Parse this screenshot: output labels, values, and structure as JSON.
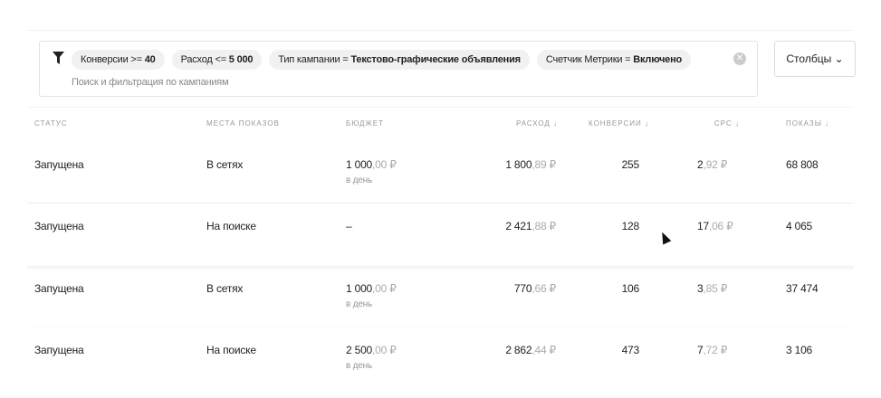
{
  "filter": {
    "chips": [
      {
        "label": "Конверсии >=",
        "value": "40"
      },
      {
        "label": "Расход <=",
        "value": "5 000"
      },
      {
        "label": "Тип кампании =",
        "value": "Текстово-графические объявления"
      },
      {
        "label": "Счетчик Метрики =",
        "value": "Включено"
      }
    ],
    "placeholder": "Поиск и фильтрация по кампаниям"
  },
  "columns_button": "Столбцы",
  "table": {
    "headers": {
      "status": "СТАТУС",
      "places": "МЕСТА ПОКАЗОВ",
      "budget": "БЮДЖЕТ",
      "spend": "РАСХОД ↓",
      "conversions": "КОНВЕРСИИ ↓",
      "cpc": "CPC ↓",
      "shows": "ПОКАЗЫ ↓"
    },
    "rows": [
      {
        "status": "Запущена",
        "places": "В сетях",
        "budget_int": "1 000",
        "budget_dec": ",00 ₽",
        "budget_period": "в день",
        "spend_int": "1 800",
        "spend_dec": ",89 ₽",
        "conversions": "255",
        "cpc_int": "2",
        "cpc_dec": ",92 ₽",
        "shows": "68 808"
      },
      {
        "status": "Запущена",
        "places": "На поиске",
        "budget_int": "–",
        "budget_dec": "",
        "budget_period": "",
        "spend_int": "2 421",
        "spend_dec": ",88 ₽",
        "conversions": "128",
        "cpc_int": "17",
        "cpc_dec": ",06 ₽",
        "shows": "4 065"
      },
      {
        "status": "Запущена",
        "places": "В сетях",
        "budget_int": "1 000",
        "budget_dec": ",00 ₽",
        "budget_period": "в день",
        "spend_int": "770",
        "spend_dec": ",66 ₽",
        "conversions": "106",
        "cpc_int": "3",
        "cpc_dec": ",85 ₽",
        "shows": "37 474"
      },
      {
        "status": "Запущена",
        "places": "На поиске",
        "budget_int": "2 500",
        "budget_dec": ",00 ₽",
        "budget_period": "в день",
        "spend_int": "2 862",
        "spend_dec": ",44 ₽",
        "conversions": "473",
        "cpc_int": "7",
        "cpc_dec": ",72 ₽",
        "shows": "3 106"
      }
    ]
  }
}
